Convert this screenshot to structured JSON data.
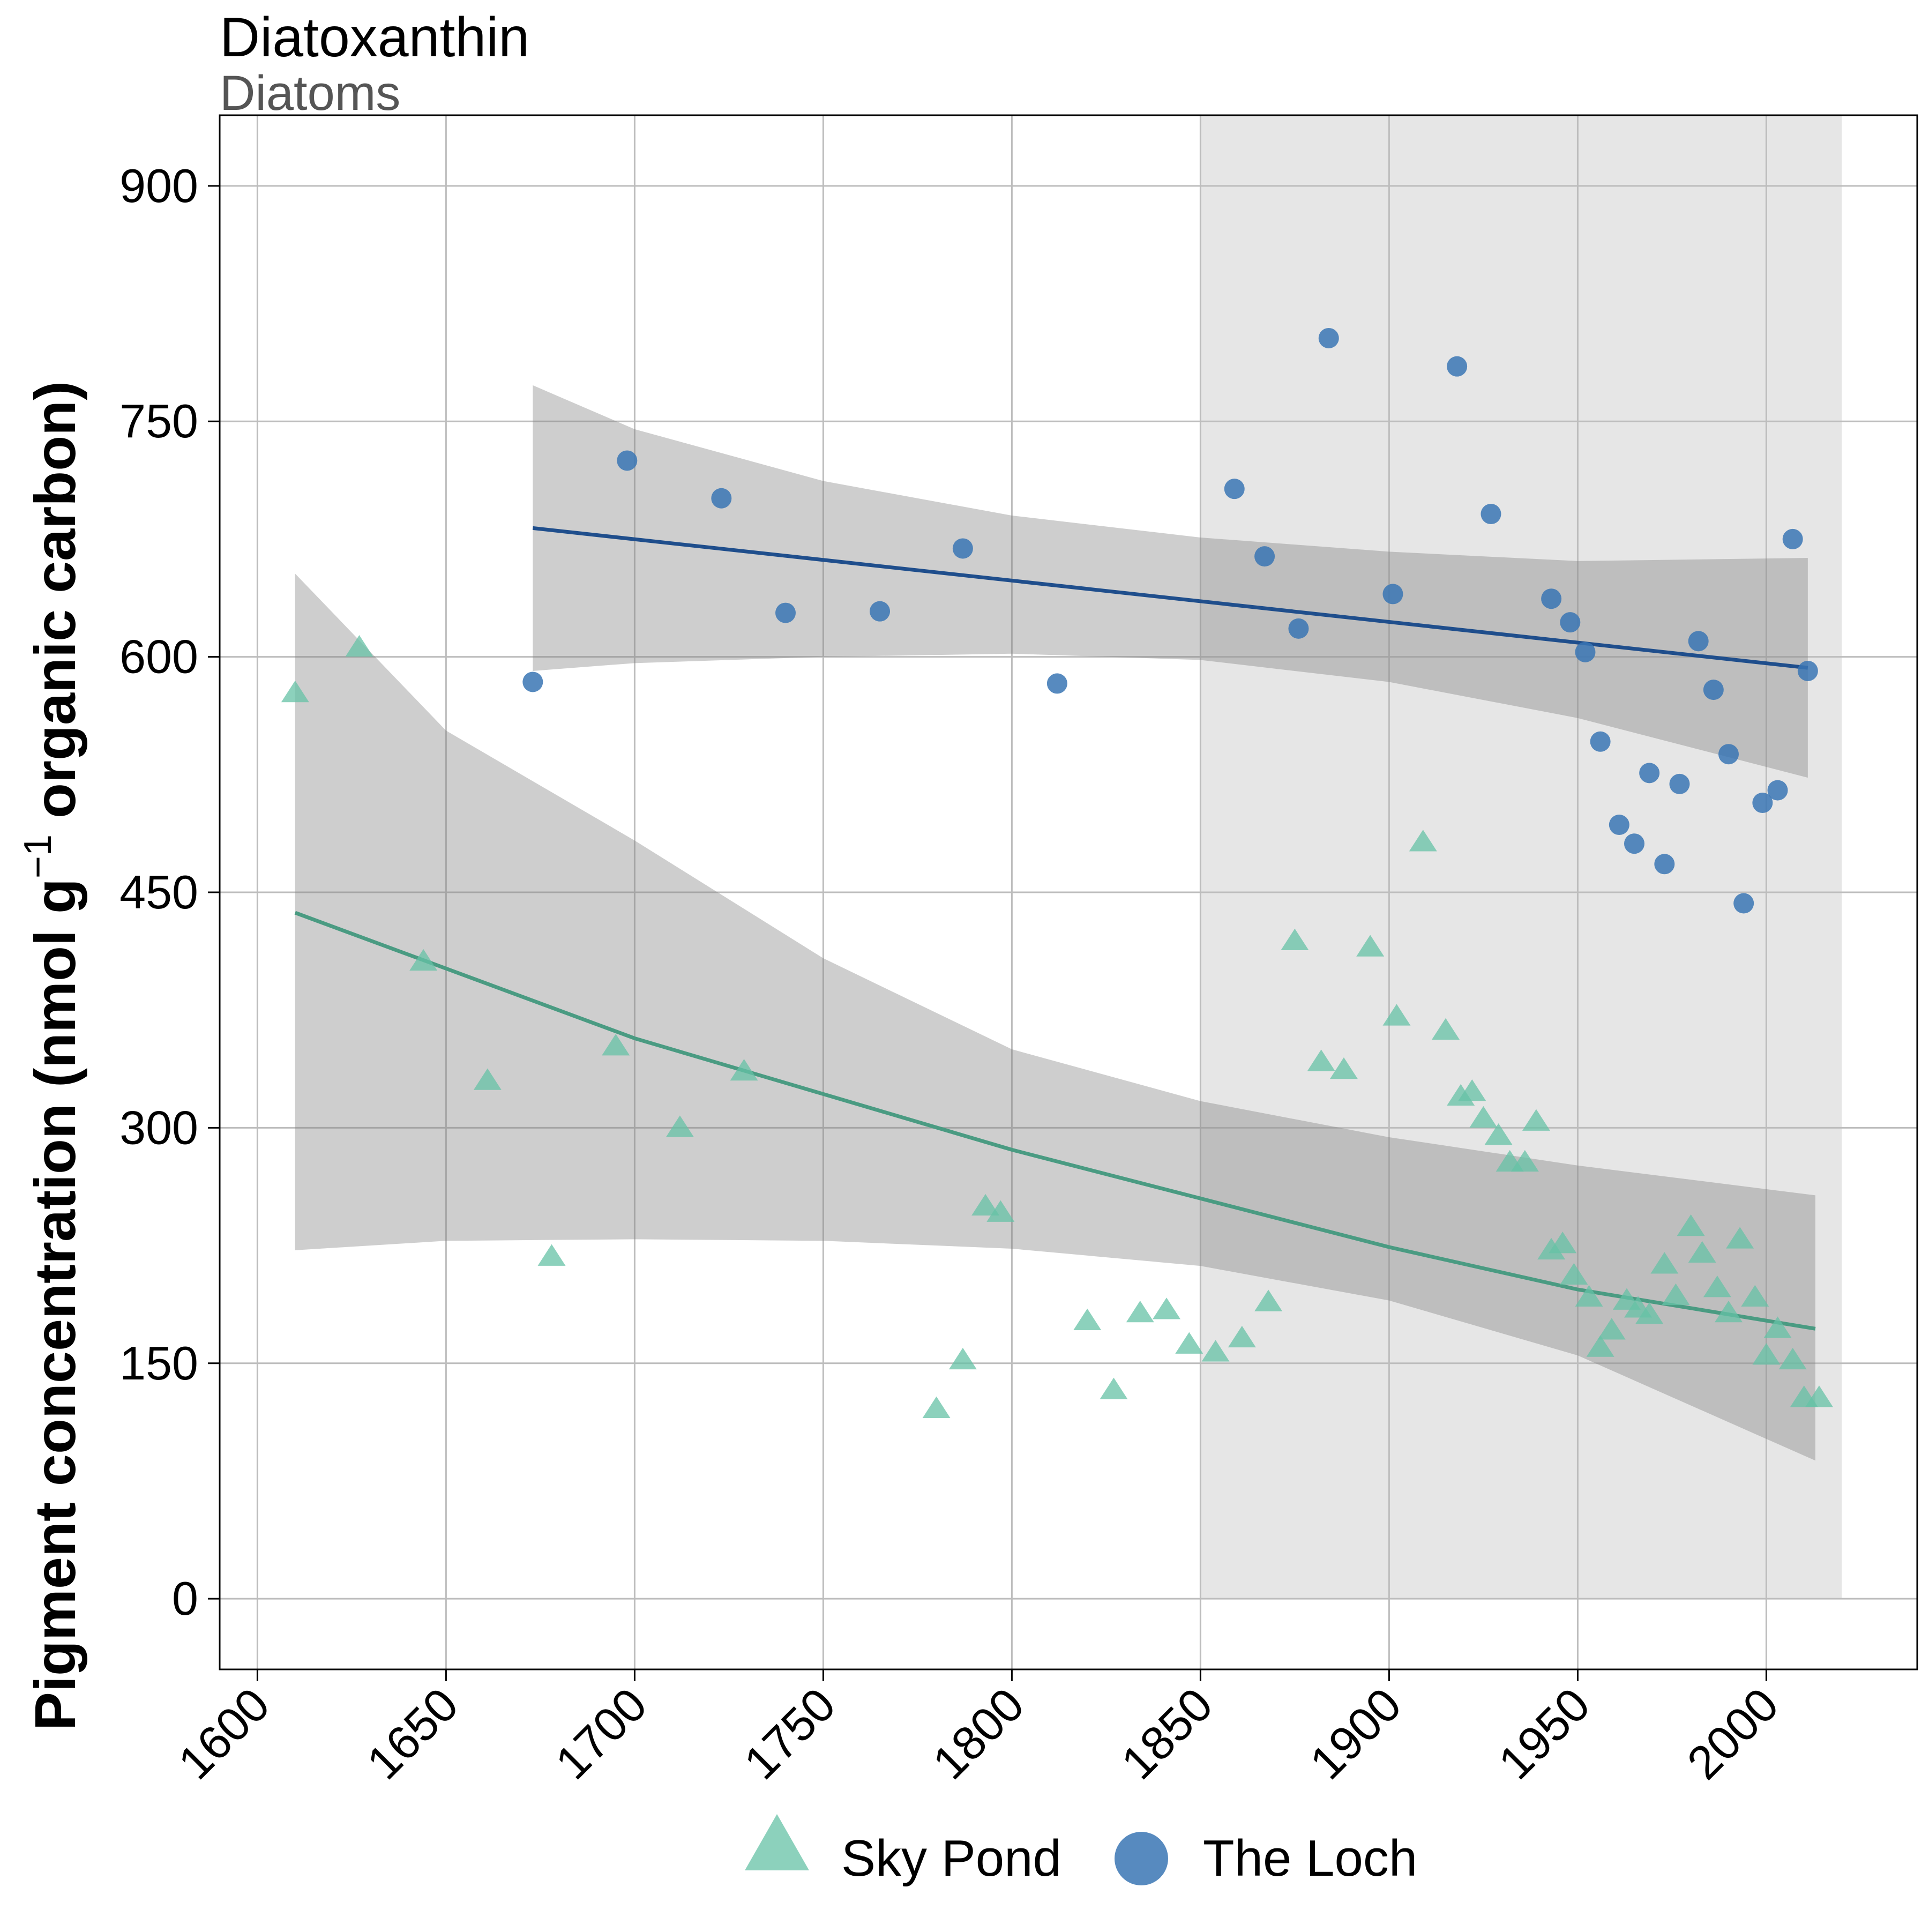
{
  "chart_data": {
    "type": "scatter",
    "title": "Diatoxanthin",
    "subtitle": "Diatoms",
    "xlabel": "",
    "ylabel": "Pigment concentration (nmol g",
    "ylabel_sup": "−1",
    "ylabel_tail": " organic carbon)",
    "xlim": [
      1590,
      2040
    ],
    "ylim": [
      -45,
      945
    ],
    "x_ticks": [
      1600,
      1650,
      1700,
      1750,
      1800,
      1850,
      1900,
      1950,
      2000
    ],
    "y_ticks": [
      0,
      150,
      300,
      450,
      600,
      750,
      900
    ],
    "grid": true,
    "shaded_period": [
      1850,
      2020
    ],
    "legend_position": "bottom",
    "series": [
      {
        "name": "Sky Pond",
        "marker": "triangle",
        "color": "#66c2a5",
        "trend_color": "#4a9b82",
        "points": [
          [
            1610,
            577
          ],
          [
            1627,
            606
          ],
          [
            1644,
            406
          ],
          [
            1661,
            330
          ],
          [
            1678,
            218
          ],
          [
            1695,
            352
          ],
          [
            1712,
            300
          ],
          [
            1729,
            336
          ],
          [
            1780,
            121
          ],
          [
            1787,
            152
          ],
          [
            1793,
            250
          ],
          [
            1797,
            246
          ],
          [
            1820,
            177
          ],
          [
            1827,
            133
          ],
          [
            1834,
            182
          ],
          [
            1841,
            184
          ],
          [
            1847,
            162
          ],
          [
            1854,
            157
          ],
          [
            1861,
            166
          ],
          [
            1868,
            189
          ],
          [
            1875,
            419
          ],
          [
            1882,
            342
          ],
          [
            1888,
            337
          ],
          [
            1895,
            415
          ],
          [
            1902,
            371
          ],
          [
            1909,
            482
          ],
          [
            1915,
            362
          ],
          [
            1919,
            320
          ],
          [
            1922,
            323
          ],
          [
            1925,
            306
          ],
          [
            1929,
            295
          ],
          [
            1932,
            278
          ],
          [
            1936,
            278
          ],
          [
            1939,
            304
          ],
          [
            1943,
            222
          ],
          [
            1946,
            226
          ],
          [
            1949,
            206
          ],
          [
            1953,
            192
          ],
          [
            1956,
            160
          ],
          [
            1959,
            171
          ],
          [
            1963,
            190
          ],
          [
            1966,
            185
          ],
          [
            1969,
            181
          ],
          [
            1973,
            213
          ],
          [
            1976,
            193
          ],
          [
            1980,
            237
          ],
          [
            1983,
            220
          ],
          [
            1987,
            198
          ],
          [
            1990,
            182
          ],
          [
            1993,
            229
          ],
          [
            1997,
            192
          ],
          [
            2000,
            155
          ],
          [
            2003,
            172
          ],
          [
            2007,
            152
          ],
          [
            2010,
            128
          ],
          [
            2014,
            128
          ]
        ],
        "trend": {
          "x": [
            1610,
            1700,
            1800,
            1900,
            1950,
            2013
          ],
          "y": [
            437,
            357,
            286,
            224,
            197,
            172
          ]
        },
        "band": {
          "x": [
            1610,
            1650,
            1700,
            1750,
            1800,
            1850,
            1900,
            1950,
            2013
          ],
          "lower": [
            222,
            228,
            229,
            228,
            223,
            212,
            190,
            155,
            88
          ],
          "upper": [
            653,
            553,
            483,
            408,
            350,
            317,
            294,
            276,
            257
          ]
        }
      },
      {
        "name": "The Loch",
        "marker": "circle",
        "color": "#3a76b4",
        "trend_color": "#1f4e8c",
        "points": [
          [
            1673,
            584
          ],
          [
            1698,
            725
          ],
          [
            1723,
            701
          ],
          [
            1740,
            628
          ],
          [
            1765,
            629
          ],
          [
            1787,
            669
          ],
          [
            1812,
            583
          ],
          [
            1859,
            707
          ],
          [
            1867,
            664
          ],
          [
            1876,
            618
          ],
          [
            1884,
            803
          ],
          [
            1901,
            640
          ],
          [
            1918,
            785
          ],
          [
            1927,
            691
          ],
          [
            1943,
            637
          ],
          [
            1948,
            622
          ],
          [
            1952,
            603
          ],
          [
            1956,
            546
          ],
          [
            1961,
            493
          ],
          [
            1965,
            481
          ],
          [
            1969,
            526
          ],
          [
            1973,
            468
          ],
          [
            1977,
            519
          ],
          [
            1982,
            610
          ],
          [
            1986,
            579
          ],
          [
            1990,
            538
          ],
          [
            1994,
            443
          ],
          [
            1999,
            507
          ],
          [
            2003,
            515
          ],
          [
            2007,
            675
          ],
          [
            2011,
            591
          ]
        ],
        "trend": {
          "x": [
            1673,
            2011
          ],
          "y": [
            682,
            593
          ]
        },
        "band": {
          "x": [
            1673,
            1700,
            1750,
            1800,
            1850,
            1900,
            1950,
            2011
          ],
          "lower": [
            591,
            596,
            600,
            602,
            598,
            584,
            561,
            523
          ],
          "upper": [
            773,
            745,
            712,
            690,
            676,
            667,
            661,
            663
          ]
        }
      }
    ]
  }
}
